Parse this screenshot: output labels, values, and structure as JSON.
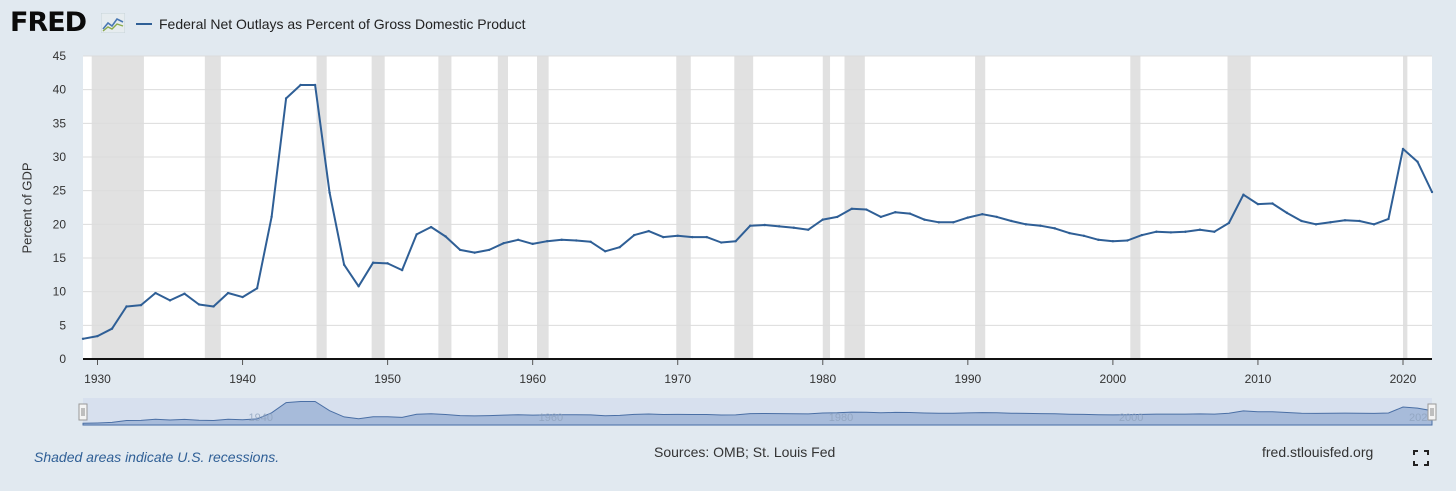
{
  "header": {
    "logo": "FRED",
    "logo_badge_icon": "chart-trend-icon",
    "legend_label": "Federal Net Outlays as Percent of Gross Domestic Product"
  },
  "footer": {
    "note": "Shaded areas indicate U.S. recessions.",
    "sources": "Sources: OMB; St. Louis Fed",
    "site": "fred.stlouisfed.org",
    "fullscreen_icon": "fullscreen-icon"
  },
  "colors": {
    "series": "#2f5f96",
    "recession": "#e1e1e1",
    "navigator": "#9fb4d6",
    "background": "#e1e9f0"
  },
  "navigator": {
    "tick_labels": [
      "1940",
      "1960",
      "1980",
      "2000",
      "2020"
    ]
  },
  "chart_data": {
    "type": "line",
    "xlabel": "",
    "ylabel": "Percent of GDP",
    "xlim": [
      1929,
      2022
    ],
    "ylim": [
      0,
      45
    ],
    "x_ticks": [
      1930,
      1940,
      1950,
      1960,
      1970,
      1980,
      1990,
      2000,
      2010,
      2020
    ],
    "y_ticks": [
      0,
      5,
      10,
      15,
      20,
      25,
      30,
      35,
      40,
      45
    ],
    "grid": true,
    "legend_placement": "top-left",
    "recessions": [
      [
        1929.6,
        1933.2
      ],
      [
        1937.4,
        1938.5
      ],
      [
        1945.1,
        1945.8
      ],
      [
        1948.9,
        1949.8
      ],
      [
        1953.5,
        1954.4
      ],
      [
        1957.6,
        1958.3
      ],
      [
        1960.3,
        1961.1
      ],
      [
        1969.9,
        1970.9
      ],
      [
        1973.9,
        1975.2
      ],
      [
        1980.0,
        1980.5
      ],
      [
        1981.5,
        1982.9
      ],
      [
        1990.5,
        1991.2
      ],
      [
        2001.2,
        2001.9
      ],
      [
        2007.9,
        2009.5
      ],
      [
        2020.0,
        2020.3
      ]
    ],
    "series": [
      {
        "name": "Federal Net Outlays as Percent of Gross Domestic Product",
        "x": [
          1929,
          1930,
          1931,
          1932,
          1933,
          1934,
          1935,
          1936,
          1937,
          1938,
          1939,
          1940,
          1941,
          1942,
          1943,
          1944,
          1945,
          1946,
          1947,
          1948,
          1949,
          1950,
          1951,
          1952,
          1953,
          1954,
          1955,
          1956,
          1957,
          1958,
          1959,
          1960,
          1961,
          1962,
          1963,
          1964,
          1965,
          1966,
          1967,
          1968,
          1969,
          1970,
          1971,
          1972,
          1973,
          1974,
          1975,
          1976,
          1977,
          1978,
          1979,
          1980,
          1981,
          1982,
          1983,
          1984,
          1985,
          1986,
          1987,
          1988,
          1989,
          1990,
          1991,
          1992,
          1993,
          1994,
          1995,
          1996,
          1997,
          1998,
          1999,
          2000,
          2001,
          2002,
          2003,
          2004,
          2005,
          2006,
          2007,
          2008,
          2009,
          2010,
          2011,
          2012,
          2013,
          2014,
          2015,
          2016,
          2017,
          2018,
          2019,
          2020,
          2021,
          2022
        ],
        "values": [
          3.0,
          3.4,
          4.5,
          7.8,
          8.0,
          9.8,
          8.7,
          9.7,
          8.1,
          7.8,
          9.8,
          9.2,
          10.5,
          21.1,
          38.7,
          40.7,
          40.7,
          24.7,
          14.0,
          10.8,
          14.3,
          14.2,
          13.2,
          18.5,
          19.6,
          18.2,
          16.2,
          15.8,
          16.2,
          17.2,
          17.7,
          17.1,
          17.5,
          17.7,
          17.6,
          17.4,
          16.0,
          16.6,
          18.4,
          19.0,
          18.1,
          18.3,
          18.1,
          18.1,
          17.3,
          17.5,
          19.8,
          19.9,
          19.7,
          19.5,
          19.2,
          20.7,
          21.1,
          22.3,
          22.2,
          21.1,
          21.8,
          21.6,
          20.7,
          20.3,
          20.3,
          21.0,
          21.5,
          21.1,
          20.5,
          20.0,
          19.8,
          19.4,
          18.7,
          18.3,
          17.7,
          17.5,
          17.6,
          18.4,
          18.9,
          18.8,
          18.9,
          19.2,
          18.9,
          20.2,
          24.4,
          23.0,
          23.1,
          21.7,
          20.5,
          20.0,
          20.3,
          20.6,
          20.5,
          20.0,
          20.8,
          31.2,
          29.3,
          24.8
        ]
      }
    ]
  }
}
